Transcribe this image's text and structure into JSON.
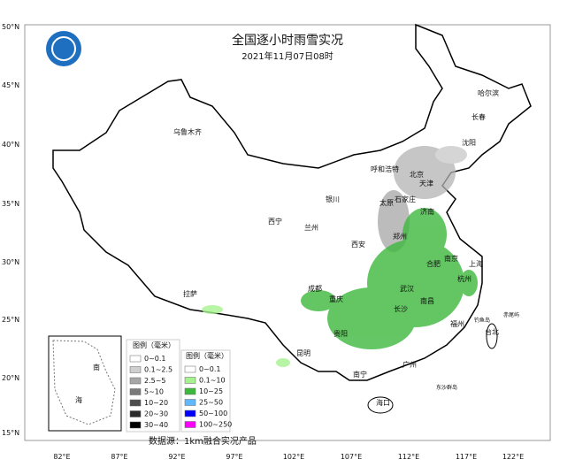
{
  "header": {
    "title": "全国逐小时雨雪实况",
    "subtitle": "2021年11月07日08时"
  },
  "lat_labels": [
    "50°N",
    "45°N",
    "40°N",
    "35°N",
    "30°N",
    "25°N",
    "20°N",
    "15°N"
  ],
  "lon_labels": [
    "82°E",
    "87°E",
    "92°E",
    "97°E",
    "102°E",
    "107°E",
    "112°E",
    "117°E",
    "122°E"
  ],
  "cities": [
    "哈尔滨",
    "长春",
    "乌鲁木齐",
    "沈阳",
    "呼和浩特",
    "北京",
    "天津",
    "银川",
    "石家庄",
    "太原",
    "济南",
    "西宁",
    "兰州",
    "郑州",
    "西安",
    "南京",
    "合肥",
    "上海",
    "杭州",
    "成都",
    "武汉",
    "拉萨",
    "重庆",
    "南昌",
    "长沙",
    "贵阳",
    "福州",
    "台北",
    "昆明",
    "南宁",
    "广州",
    "海口",
    "钓鱼岛",
    "赤尾屿",
    "东沙群岛"
  ],
  "legend_snow": {
    "title": "图例（毫米）",
    "items": [
      {
        "label": "0~0.1",
        "color": "#ffffff"
      },
      {
        "label": "0.1~2.5",
        "color": "#cfcfcf"
      },
      {
        "label": "2.5~5",
        "color": "#a6a6a6"
      },
      {
        "label": "5~10",
        "color": "#7a7a7a"
      },
      {
        "label": "10~20",
        "color": "#4d4d4d"
      },
      {
        "label": "20~30",
        "color": "#2a2a2a"
      },
      {
        "label": "30~40",
        "color": "#000000"
      }
    ]
  },
  "legend_rain": {
    "title": "图例（毫米）",
    "items": [
      {
        "label": "0~0.1",
        "color": "#ffffff"
      },
      {
        "label": "0.1~10",
        "color": "#a6f28f"
      },
      {
        "label": "10~25",
        "color": "#3db83d"
      },
      {
        "label": "25~50",
        "color": "#61b8ff"
      },
      {
        "label": "50~100",
        "color": "#0000fe"
      },
      {
        "label": "100~250",
        "color": "#fa00fa"
      }
    ]
  },
  "inset": {
    "labels": [
      "南",
      "海"
    ]
  },
  "source": "数据源：1km融合实况产品"
}
